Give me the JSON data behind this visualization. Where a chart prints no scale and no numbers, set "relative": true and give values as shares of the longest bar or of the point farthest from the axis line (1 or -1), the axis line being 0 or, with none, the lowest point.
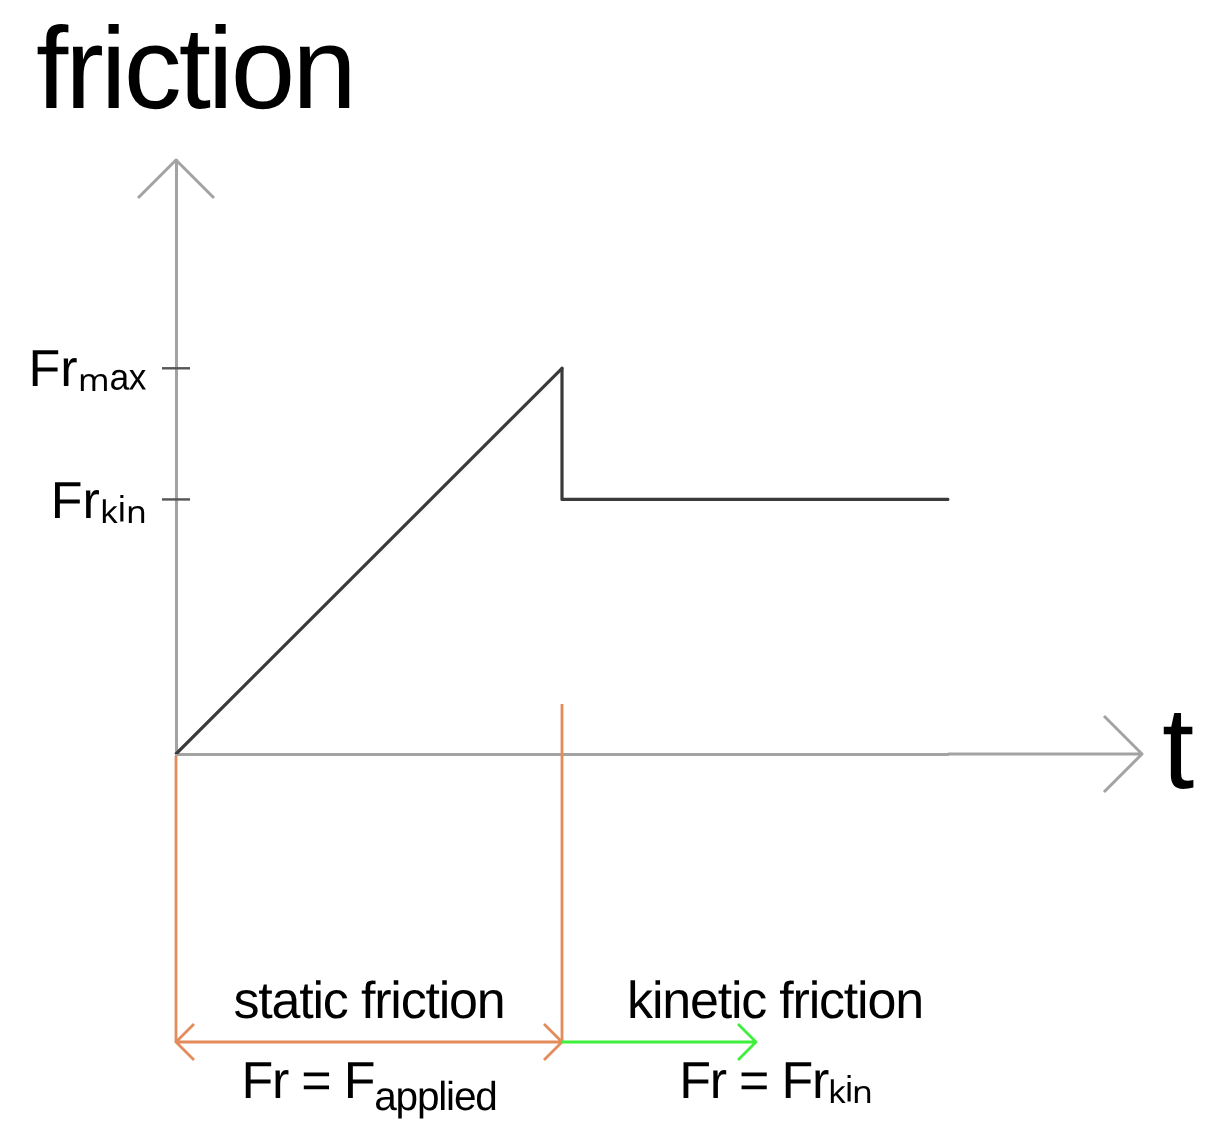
{
  "chart_data": {
    "type": "line",
    "relative": true,
    "xlabel": "t",
    "ylabel": "friction",
    "categories": [
      null,
      null,
      null
    ],
    "series": [
      {
        "color": "#3a3a3a",
        "values": [
          0,
          1,
          null
        ]
      },
      {
        "type": "step",
        "color": "#3a3a3a",
        "values": [
          null,
          1,
          0.66
        ]
      }
    ],
    "tick_labels": false,
    "marker": "none",
    "annotations": [
      "Frₘₐₓ",
      "Frₖᵢₙ",
      "static friction",
      "Fr = F$_{applied}$",
      "kinetic friction",
      "Fr = Frₖᵢₙ"
    ]
  }
}
